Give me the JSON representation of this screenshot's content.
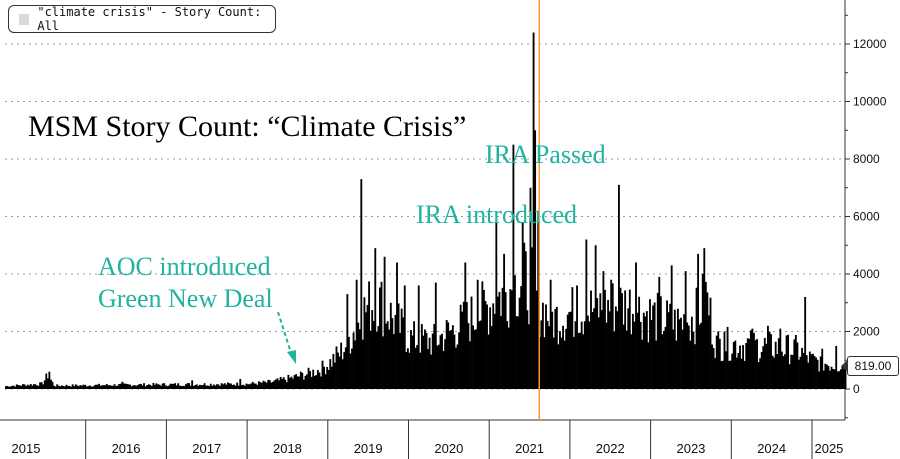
{
  "legend": {
    "label": "\"climate crisis\" - Story Count: All"
  },
  "chart_data": {
    "type": "bar",
    "title": "MSM Story Count: “Climate Crisis”",
    "series_name": "\"climate crisis\" - Story Count: All",
    "xlabel": "",
    "ylabel": "",
    "ylim": [
      -1000,
      13000
    ],
    "y_ticks": [
      0,
      2000,
      4000,
      6000,
      8000,
      10000,
      12000
    ],
    "y_tick_labels": [
      "0",
      "2000",
      "4000",
      "6000",
      "8000",
      "10000",
      "12000"
    ],
    "x_ticks": [
      "2015",
      "2016",
      "2017",
      "2018",
      "2019",
      "2020",
      "2021",
      "2022",
      "2023",
      "2024",
      "2025"
    ],
    "x_range_years": [
      2015.0,
      2025.42
    ],
    "grid": true,
    "last_value_label": "819.00",
    "anchors": [
      [
        2015.0,
        100
      ],
      [
        2015.25,
        150
      ],
      [
        2015.45,
        180
      ],
      [
        2015.52,
        500
      ],
      [
        2015.6,
        120
      ],
      [
        2016.0,
        130
      ],
      [
        2016.5,
        150
      ],
      [
        2017.0,
        160
      ],
      [
        2017.5,
        170
      ],
      [
        2018.0,
        180
      ],
      [
        2018.3,
        250
      ],
      [
        2018.55,
        400
      ],
      [
        2018.75,
        550
      ],
      [
        2018.9,
        700
      ],
      [
        2019.0,
        900
      ],
      [
        2019.15,
        1300
      ],
      [
        2019.3,
        2000
      ],
      [
        2019.45,
        2800
      ],
      [
        2019.6,
        3200
      ],
      [
        2019.8,
        2500
      ],
      [
        2020.0,
        1800
      ],
      [
        2020.3,
        1700
      ],
      [
        2020.6,
        2200
      ],
      [
        2020.85,
        2700
      ],
      [
        2021.0,
        3000
      ],
      [
        2021.2,
        3500
      ],
      [
        2021.4,
        3900
      ],
      [
        2021.55,
        3600
      ],
      [
        2021.62,
        2900
      ],
      [
        2021.8,
        2500
      ],
      [
        2022.0,
        2700
      ],
      [
        2022.4,
        2900
      ],
      [
        2022.7,
        3000
      ],
      [
        2023.0,
        2600
      ],
      [
        2023.3,
        2300
      ],
      [
        2023.55,
        2600
      ],
      [
        2023.68,
        3300
      ],
      [
        2023.8,
        1600
      ],
      [
        2024.0,
        1600
      ],
      [
        2024.5,
        1500
      ],
      [
        2024.8,
        1400
      ],
      [
        2025.0,
        1000
      ],
      [
        2025.2,
        900
      ],
      [
        2025.42,
        819
      ]
    ],
    "spikes": [
      [
        2015.53,
        600
      ],
      [
        2016.45,
        250
      ],
      [
        2017.3,
        300
      ],
      [
        2017.9,
        350
      ],
      [
        2019.24,
        3300
      ],
      [
        2019.34,
        3800
      ],
      [
        2019.41,
        7300
      ],
      [
        2019.58,
        4900
      ],
      [
        2019.7,
        4600
      ],
      [
        2019.85,
        4400
      ],
      [
        2019.95,
        3600
      ],
      [
        2020.12,
        3600
      ],
      [
        2020.33,
        3700
      ],
      [
        2020.7,
        4400
      ],
      [
        2020.85,
        3800
      ],
      [
        2021.07,
        5900
      ],
      [
        2021.18,
        4700
      ],
      [
        2021.29,
        8500
      ],
      [
        2021.4,
        5800
      ],
      [
        2021.5,
        7000
      ],
      [
        2021.53,
        12400
      ],
      [
        2021.56,
        9000
      ],
      [
        2021.6,
        6200
      ],
      [
        2021.75,
        3800
      ],
      [
        2022.08,
        3600
      ],
      [
        2022.2,
        5200
      ],
      [
        2022.3,
        5000
      ],
      [
        2022.4,
        4100
      ],
      [
        2022.5,
        3800
      ],
      [
        2022.6,
        7100
      ],
      [
        2022.8,
        4400
      ],
      [
        2023.1,
        3900
      ],
      [
        2023.25,
        4300
      ],
      [
        2023.42,
        4100
      ],
      [
        2023.58,
        4700
      ],
      [
        2023.66,
        4900
      ],
      [
        2023.9,
        2000
      ],
      [
        2024.25,
        2100
      ],
      [
        2024.45,
        2200
      ],
      [
        2024.6,
        2100
      ],
      [
        2024.9,
        3200
      ],
      [
        2025.12,
        1400
      ],
      [
        2025.28,
        1500
      ]
    ],
    "annotations": [
      {
        "text": "IRA Passed",
        "year": 2021.62
      },
      {
        "text": "IRA introduced",
        "year": 2021.42
      },
      {
        "text": "AOC introduced Green New Deal",
        "year": 2019.0
      }
    ],
    "vertical_marker_year": 2021.62
  },
  "annotations": {
    "ira_passed": "IRA Passed",
    "ira_introduced": "IRA introduced",
    "aoc_line1": "AOC introduced",
    "aoc_line2": "Green New Deal"
  },
  "colors": {
    "bars": "#000000",
    "annotation": "#21b3a0",
    "marker": "#ff9933",
    "grid": "#9a9a9a"
  }
}
